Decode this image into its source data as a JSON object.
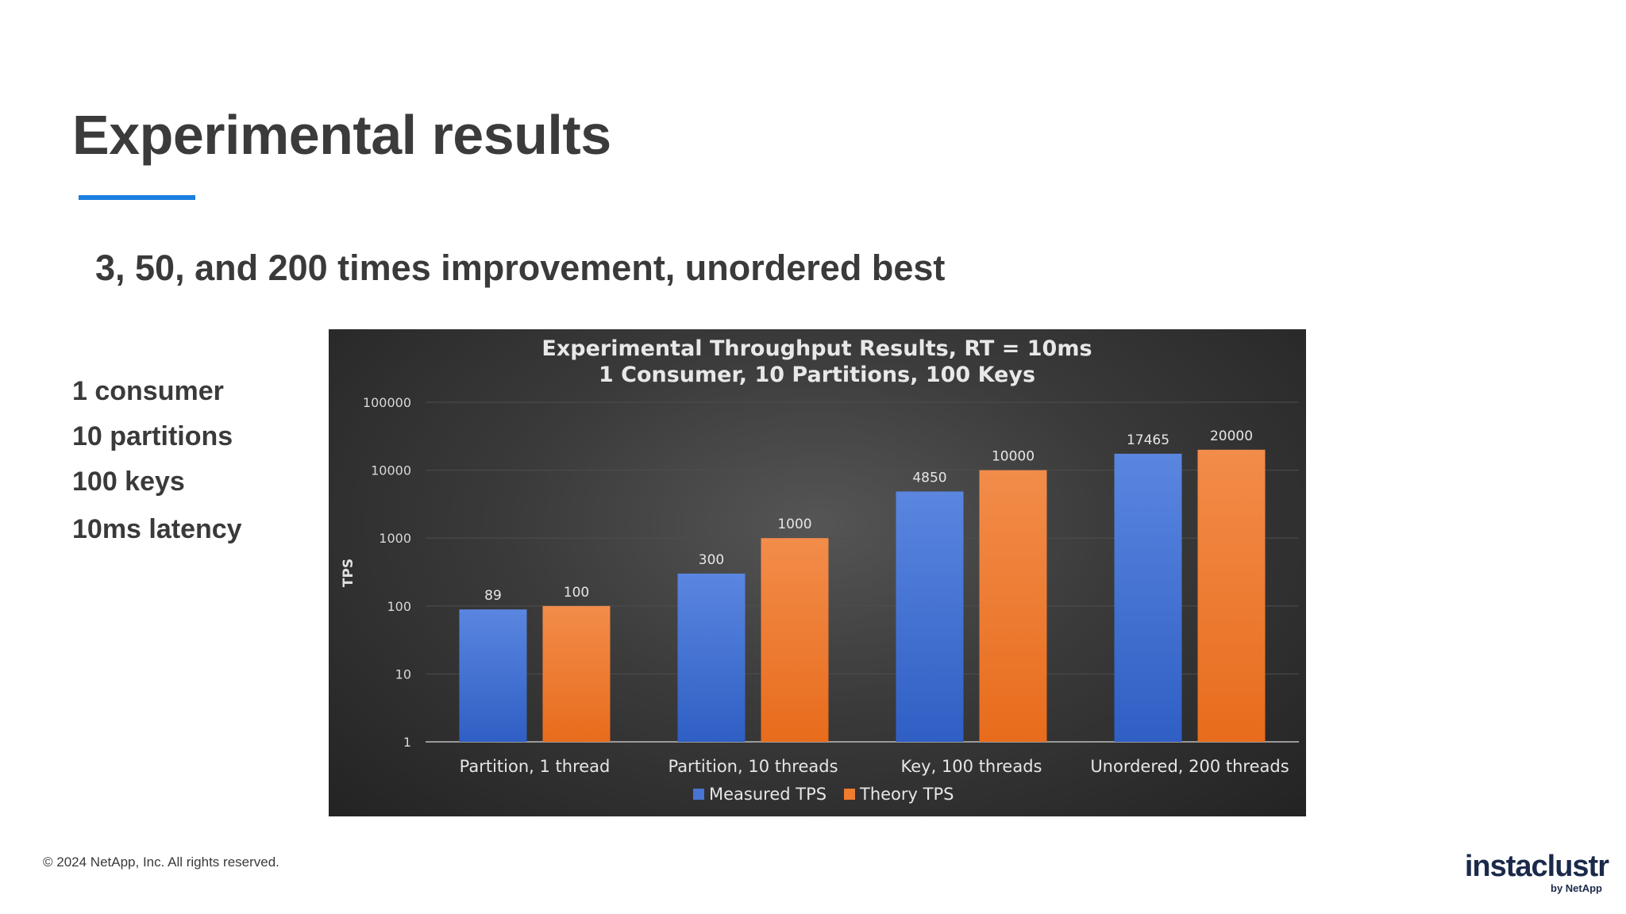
{
  "slide": {
    "title": "Experimental results",
    "subtitle": "3, 50, and 200 times improvement, unordered best",
    "bullets": [
      "1 consumer",
      "10 partitions",
      "100 keys",
      "10ms latency"
    ],
    "footer": "© 2024 NetApp, Inc. All rights reserved.",
    "logo": {
      "main": "instaclustr",
      "sub": "by NetApp"
    },
    "accent_color": "#1a7fe0"
  },
  "chart_data": {
    "type": "bar",
    "title": "Experimental Throughput Results, RT = 10ms",
    "subtitle": "1 Consumer, 10 Partitions, 100 Keys",
    "ylabel": "TPS",
    "xlabel": "",
    "yscale": "log",
    "ylim": [
      1,
      100000
    ],
    "yticks": [
      "1",
      "10",
      "100",
      "1000",
      "10000",
      "100000"
    ],
    "categories": [
      "Partition, 1 thread",
      "Partition, 10 threads",
      "Key, 100 threads",
      "Unordered, 200 threads"
    ],
    "series": [
      {
        "name": "Measured TPS",
        "values": [
          89,
          300,
          4850,
          17465
        ],
        "color": "#4a74d4"
      },
      {
        "name": "Theory TPS",
        "values": [
          100,
          1000,
          10000,
          20000
        ],
        "color": "#f07d2e"
      }
    ],
    "legend": "bottom",
    "grid": true,
    "data_labels": true
  }
}
